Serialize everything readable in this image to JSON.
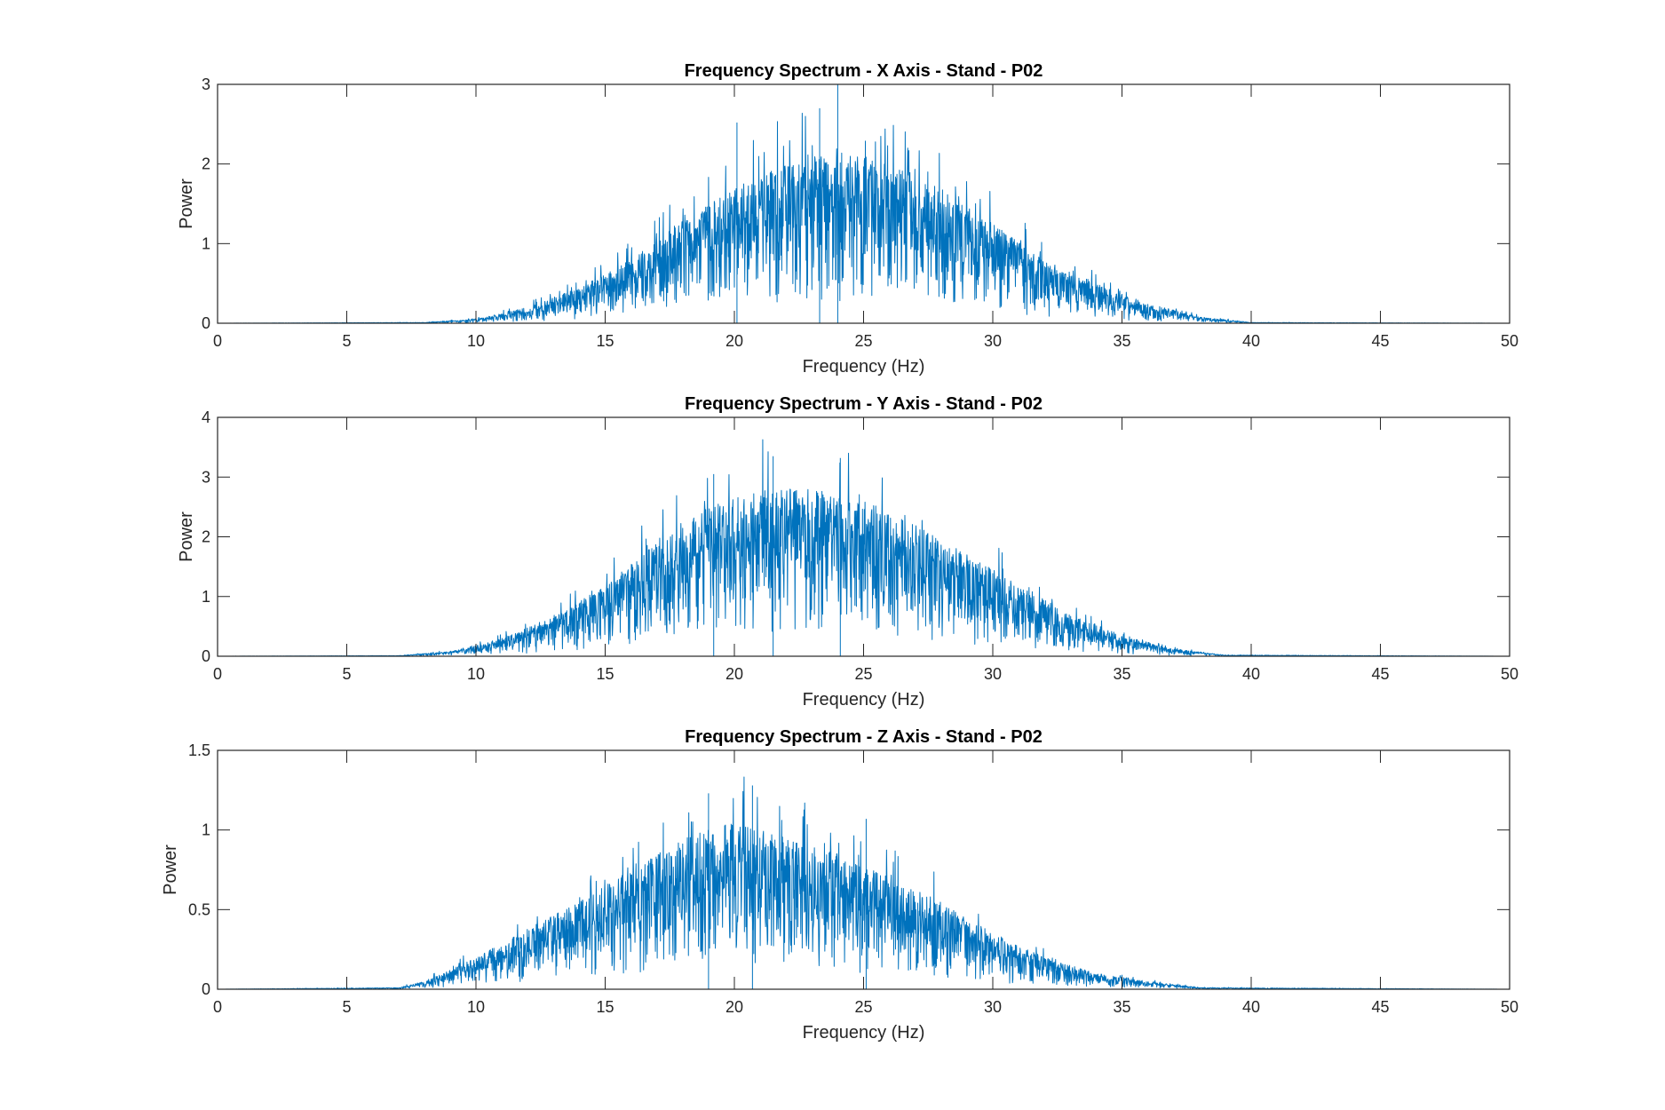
{
  "figure": {
    "background": "#ffffff",
    "axes_color": "#262626",
    "line_color": "#0072BD"
  },
  "chart_data": [
    {
      "type": "line",
      "title": "Frequency Spectrum - X Axis - Stand - P02",
      "xlabel": "Frequency (Hz)",
      "ylabel": "Power",
      "xlim": [
        0,
        50
      ],
      "ylim": [
        0,
        3
      ],
      "xticks": [
        "0",
        "5",
        "10",
        "15",
        "20",
        "25",
        "30",
        "35",
        "40",
        "45",
        "50"
      ],
      "yticks": [
        "0",
        "1",
        "2",
        "3"
      ],
      "grid": false,
      "legend": "none",
      "series": [
        {
          "color": "#0072BD",
          "envelope": {
            "x": [
              0,
              8,
              10,
              12,
              14,
              16,
              18,
              20,
              22,
              24,
              26,
              28,
              30,
              32,
              34,
              36,
              38,
              40,
              50
            ],
            "y": [
              0,
              0.01,
              0.05,
              0.2,
              0.45,
              0.8,
              1.3,
              1.7,
              2.0,
              2.2,
              2.0,
              1.7,
              1.25,
              0.8,
              0.5,
              0.25,
              0.08,
              0.01,
              0
            ]
          },
          "labeled_peaks": [
            {
              "x": 20.1,
              "y": 2.52
            },
            {
              "x": 23.3,
              "y": 2.7
            },
            {
              "x": 24.0,
              "y": 3.0
            }
          ]
        }
      ]
    },
    {
      "type": "line",
      "title": "Frequency Spectrum - Y Axis - Stand - P02",
      "xlabel": "Frequency (Hz)",
      "ylabel": "Power",
      "xlim": [
        0,
        50
      ],
      "ylim": [
        0,
        4
      ],
      "xticks": [
        "0",
        "5",
        "10",
        "15",
        "20",
        "25",
        "30",
        "35",
        "40",
        "45",
        "50"
      ],
      "yticks": [
        "0",
        "1",
        "2",
        "3",
        "4"
      ],
      "grid": false,
      "legend": "none",
      "series": [
        {
          "color": "#0072BD",
          "envelope": {
            "x": [
              0,
              7,
              9,
              11,
              13,
              15,
              17,
              19,
              21,
              23,
              25,
              27,
              29,
              31,
              33,
              35,
              37,
              39,
              50
            ],
            "y": [
              0,
              0.01,
              0.08,
              0.3,
              0.65,
              1.2,
              1.9,
              2.5,
              2.8,
              2.8,
              2.6,
              2.2,
              1.7,
              1.2,
              0.7,
              0.35,
              0.12,
              0.02,
              0
            ]
          },
          "labeled_peaks": [
            {
              "x": 21.5,
              "y": 3.35
            },
            {
              "x": 24.1,
              "y": 3.32
            },
            {
              "x": 19.2,
              "y": 3.05
            }
          ]
        }
      ]
    },
    {
      "type": "line",
      "title": "Frequency Spectrum - Z Axis - Stand - P02",
      "xlabel": "Frequency (Hz)",
      "ylabel": "Power",
      "xlim": [
        0,
        50
      ],
      "ylim": [
        0,
        1.5
      ],
      "xticks": [
        "0",
        "5",
        "10",
        "15",
        "20",
        "25",
        "30",
        "35",
        "40",
        "45",
        "50"
      ],
      "yticks": [
        "0",
        "0.5",
        "1",
        "1.5"
      ],
      "grid": false,
      "legend": "none",
      "series": [
        {
          "color": "#0072BD",
          "envelope": {
            "x": [
              0,
              7,
              8,
              10,
              12,
              14,
              16,
              18,
              20,
              22,
              24,
              26,
              28,
              30,
              32,
              34,
              36,
              38,
              50
            ],
            "y": [
              0,
              0.01,
              0.05,
              0.2,
              0.38,
              0.55,
              0.75,
              0.95,
              1.05,
              0.95,
              0.85,
              0.7,
              0.55,
              0.35,
              0.2,
              0.1,
              0.05,
              0.01,
              0
            ]
          },
          "labeled_peaks": [
            {
              "x": 20.7,
              "y": 1.28
            },
            {
              "x": 19.0,
              "y": 1.23
            },
            {
              "x": 25.1,
              "y": 1.07
            }
          ]
        }
      ]
    }
  ]
}
